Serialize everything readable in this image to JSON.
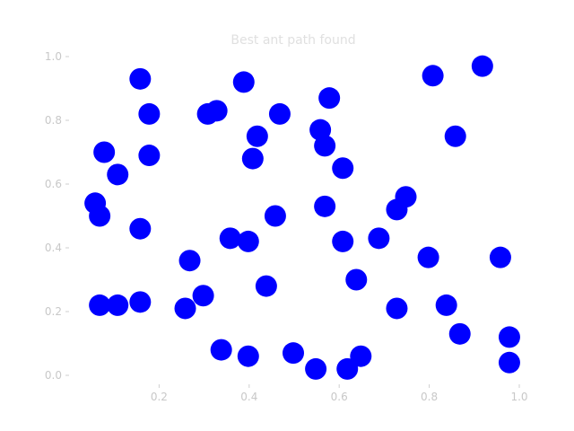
{
  "chart_data": {
    "type": "scatter",
    "title": "Best ant path found",
    "xlabel": "",
    "ylabel": "",
    "xlim": [
      0.0,
      1.0
    ],
    "ylim": [
      0.0,
      1.0
    ],
    "grid": false,
    "x_ticks": [
      "0.2",
      "0.4",
      "0.6",
      "0.8",
      "1.0"
    ],
    "y_ticks": [
      "0.0",
      "0.2",
      "0.4",
      "0.6",
      "0.8",
      "1.0"
    ],
    "marker_color": "#0000ff",
    "series": [
      {
        "points": [
          {
            "x": 0.16,
            "y": 0.93
          },
          {
            "x": 0.18,
            "y": 0.82
          },
          {
            "x": 0.18,
            "y": 0.69
          },
          {
            "x": 0.08,
            "y": 0.7
          },
          {
            "x": 0.11,
            "y": 0.63
          },
          {
            "x": 0.06,
            "y": 0.54
          },
          {
            "x": 0.07,
            "y": 0.5
          },
          {
            "x": 0.16,
            "y": 0.46
          },
          {
            "x": 0.07,
            "y": 0.22
          },
          {
            "x": 0.11,
            "y": 0.22
          },
          {
            "x": 0.16,
            "y": 0.23
          },
          {
            "x": 0.26,
            "y": 0.21
          },
          {
            "x": 0.3,
            "y": 0.25
          },
          {
            "x": 0.27,
            "y": 0.36
          },
          {
            "x": 0.39,
            "y": 0.92
          },
          {
            "x": 0.31,
            "y": 0.82
          },
          {
            "x": 0.33,
            "y": 0.83
          },
          {
            "x": 0.42,
            "y": 0.75
          },
          {
            "x": 0.41,
            "y": 0.68
          },
          {
            "x": 0.47,
            "y": 0.82
          },
          {
            "x": 0.56,
            "y": 0.77
          },
          {
            "x": 0.57,
            "y": 0.72
          },
          {
            "x": 0.58,
            "y": 0.87
          },
          {
            "x": 0.61,
            "y": 0.65
          },
          {
            "x": 0.46,
            "y": 0.5
          },
          {
            "x": 0.57,
            "y": 0.53
          },
          {
            "x": 0.36,
            "y": 0.43
          },
          {
            "x": 0.4,
            "y": 0.42
          },
          {
            "x": 0.44,
            "y": 0.28
          },
          {
            "x": 0.34,
            "y": 0.08
          },
          {
            "x": 0.4,
            "y": 0.06
          },
          {
            "x": 0.5,
            "y": 0.07
          },
          {
            "x": 0.55,
            "y": 0.02
          },
          {
            "x": 0.62,
            "y": 0.02
          },
          {
            "x": 0.65,
            "y": 0.06
          },
          {
            "x": 0.64,
            "y": 0.3
          },
          {
            "x": 0.61,
            "y": 0.42
          },
          {
            "x": 0.69,
            "y": 0.43
          },
          {
            "x": 0.73,
            "y": 0.52
          },
          {
            "x": 0.75,
            "y": 0.56
          },
          {
            "x": 0.73,
            "y": 0.21
          },
          {
            "x": 0.8,
            "y": 0.37
          },
          {
            "x": 0.84,
            "y": 0.22
          },
          {
            "x": 0.87,
            "y": 0.13
          },
          {
            "x": 0.81,
            "y": 0.94
          },
          {
            "x": 0.86,
            "y": 0.75
          },
          {
            "x": 0.92,
            "y": 0.97
          },
          {
            "x": 0.96,
            "y": 0.37
          },
          {
            "x": 0.98,
            "y": 0.12
          },
          {
            "x": 0.98,
            "y": 0.04
          }
        ]
      }
    ]
  }
}
